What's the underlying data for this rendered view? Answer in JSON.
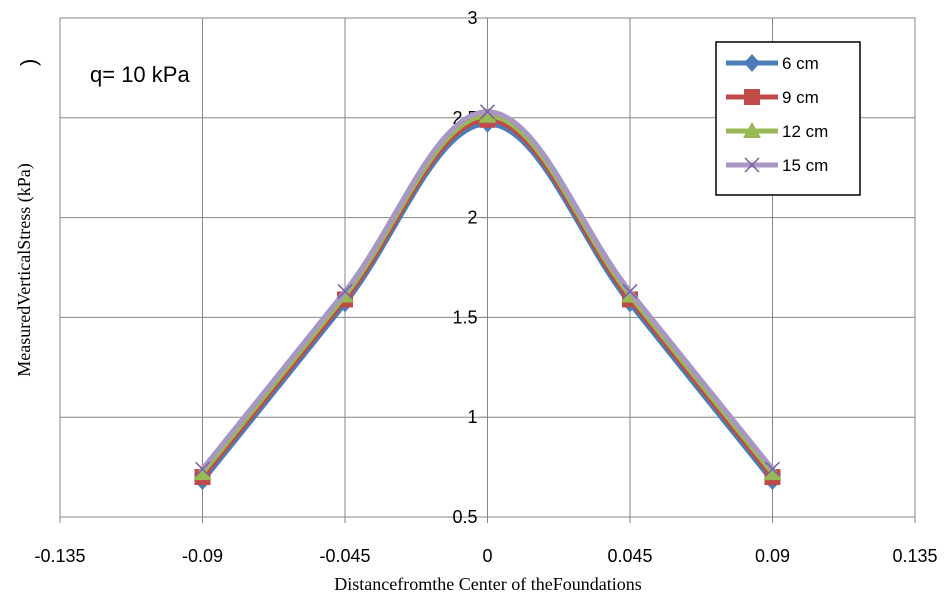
{
  "chart_data": {
    "type": "line",
    "xlabel": "Distancefromthe Center of theFoundations",
    "ylabel": "MeasuredVerticalStress (kPa)",
    "xlim": [
      -0.135,
      0.135
    ],
    "ylim": [
      0.5,
      3
    ],
    "x_ticks": [
      "-0.135",
      "-0.09",
      "-0.045",
      "0",
      "0.045",
      "0.09",
      "0.135"
    ],
    "y_ticks": [
      "0.5",
      "1",
      "1.5",
      "2",
      "2.5",
      "3"
    ],
    "annotation": "q= 10 kPa",
    "fragment": ")",
    "grid": true,
    "legend_position": "top-right",
    "x": [
      -0.09,
      -0.045,
      0,
      0.045,
      0.09
    ],
    "series": [
      {
        "name": "6 cm",
        "values": [
          0.68,
          1.57,
          2.47,
          1.57,
          0.68
        ],
        "color": "#4a7ebb",
        "marker": "diamond"
      },
      {
        "name": "9 cm",
        "values": [
          0.7,
          1.59,
          2.49,
          1.59,
          0.7
        ],
        "color": "#be4b48",
        "marker": "square"
      },
      {
        "name": "12 cm",
        "values": [
          0.72,
          1.61,
          2.51,
          1.61,
          0.72
        ],
        "color": "#98b954",
        "marker": "triangle"
      },
      {
        "name": "15 cm",
        "values": [
          0.74,
          1.63,
          2.53,
          1.63,
          0.74
        ],
        "color": "#a897c5",
        "marker": "x"
      }
    ]
  }
}
